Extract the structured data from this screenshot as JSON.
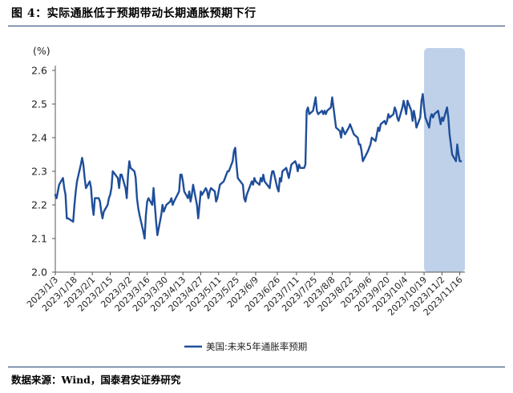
{
  "figure": {
    "title": "图 4：实际通胀低于预期带动长期通胀预期下行",
    "source": "数据来源：Wind，国泰君安证券研究"
  },
  "chart_data": {
    "type": "line",
    "ylabel": "(%)",
    "ylim": [
      2.0,
      2.6
    ],
    "yticks": [
      "2.0",
      "2.1",
      "2.2",
      "2.3",
      "2.4",
      "2.5",
      "2.6"
    ],
    "xlim": [
      "2023-01-03",
      "2023-11-20"
    ],
    "xticks": [
      "2023/1/3",
      "2023/1/18",
      "2023/2/1",
      "2023/2/15",
      "2023/3/2",
      "2023/3/16",
      "2023/3/30",
      "2023/4/13",
      "2023/4/27",
      "2023/5/11",
      "2023/5/25",
      "2023/6/9",
      "2023/6/26",
      "2023/7/11",
      "2023/7/25",
      "2023/8/8",
      "2023/8/22",
      "2023/9/6",
      "2023/9/20",
      "2023/10/4",
      "2023/10/19",
      "2023/11/2",
      "2023/11/16"
    ],
    "highlight": {
      "from": "2023-10-19",
      "to": "2023-11-20",
      "color": "#bccfe8"
    },
    "series": [
      {
        "name": "美国:未来5年通胀率预期",
        "color": "#1f4e9a",
        "points": [
          [
            "2023-01-03",
            2.23
          ],
          [
            "2023-01-04",
            2.22
          ],
          [
            "2023-01-05",
            2.24
          ],
          [
            "2023-01-06",
            2.26
          ],
          [
            "2023-01-09",
            2.28
          ],
          [
            "2023-01-10",
            2.25
          ],
          [
            "2023-01-11",
            2.23
          ],
          [
            "2023-01-12",
            2.16
          ],
          [
            "2023-01-13",
            2.16
          ],
          [
            "2023-01-17",
            2.15
          ],
          [
            "2023-01-18",
            2.2
          ],
          [
            "2023-01-19",
            2.24
          ],
          [
            "2023-01-20",
            2.27
          ],
          [
            "2023-01-23",
            2.32
          ],
          [
            "2023-01-24",
            2.34
          ],
          [
            "2023-01-25",
            2.32
          ],
          [
            "2023-01-26",
            2.28
          ],
          [
            "2023-01-27",
            2.25
          ],
          [
            "2023-01-30",
            2.27
          ],
          [
            "2023-01-31",
            2.25
          ],
          [
            "2023-02-01",
            2.2
          ],
          [
            "2023-02-02",
            2.17
          ],
          [
            "2023-02-03",
            2.22
          ],
          [
            "2023-02-06",
            2.22
          ],
          [
            "2023-02-07",
            2.21
          ],
          [
            "2023-02-08",
            2.18
          ],
          [
            "2023-02-09",
            2.16
          ],
          [
            "2023-02-10",
            2.18
          ],
          [
            "2023-02-13",
            2.2
          ],
          [
            "2023-02-14",
            2.22
          ],
          [
            "2023-02-15",
            2.23
          ],
          [
            "2023-02-16",
            2.25
          ],
          [
            "2023-02-17",
            2.3
          ],
          [
            "2023-02-21",
            2.28
          ],
          [
            "2023-02-22",
            2.25
          ],
          [
            "2023-02-23",
            2.29
          ],
          [
            "2023-02-24",
            2.29
          ],
          [
            "2023-02-27",
            2.25
          ],
          [
            "2023-02-28",
            2.22
          ],
          [
            "2023-03-01",
            2.29
          ],
          [
            "2023-03-02",
            2.33
          ],
          [
            "2023-03-03",
            2.31
          ],
          [
            "2023-03-06",
            2.3
          ],
          [
            "2023-03-07",
            2.28
          ],
          [
            "2023-03-08",
            2.22
          ],
          [
            "2023-03-09",
            2.19
          ],
          [
            "2023-03-10",
            2.17
          ],
          [
            "2023-03-13",
            2.12
          ],
          [
            "2023-03-14",
            2.1
          ],
          [
            "2023-03-15",
            2.17
          ],
          [
            "2023-03-16",
            2.21
          ],
          [
            "2023-03-17",
            2.22
          ],
          [
            "2023-03-20",
            2.2
          ],
          [
            "2023-03-21",
            2.25
          ],
          [
            "2023-03-22",
            2.2
          ],
          [
            "2023-03-23",
            2.15
          ],
          [
            "2023-03-24",
            2.11
          ],
          [
            "2023-03-27",
            2.17
          ],
          [
            "2023-03-28",
            2.2
          ],
          [
            "2023-03-29",
            2.18
          ],
          [
            "2023-03-30",
            2.19
          ],
          [
            "2023-03-31",
            2.2
          ],
          [
            "2023-04-03",
            2.21
          ],
          [
            "2023-04-04",
            2.22
          ],
          [
            "2023-04-05",
            2.2
          ],
          [
            "2023-04-06",
            2.21
          ],
          [
            "2023-04-10",
            2.24
          ],
          [
            "2023-04-11",
            2.29
          ],
          [
            "2023-04-12",
            2.29
          ],
          [
            "2023-04-13",
            2.27
          ],
          [
            "2023-04-14",
            2.24
          ],
          [
            "2023-04-17",
            2.22
          ],
          [
            "2023-04-18",
            2.24
          ],
          [
            "2023-04-19",
            2.21
          ],
          [
            "2023-04-20",
            2.23
          ],
          [
            "2023-04-21",
            2.26
          ],
          [
            "2023-04-24",
            2.2
          ],
          [
            "2023-04-25",
            2.16
          ],
          [
            "2023-04-26",
            2.2
          ],
          [
            "2023-04-27",
            2.24
          ],
          [
            "2023-04-28",
            2.23
          ],
          [
            "2023-05-01",
            2.25
          ],
          [
            "2023-05-02",
            2.24
          ],
          [
            "2023-05-03",
            2.22
          ],
          [
            "2023-05-04",
            2.24
          ],
          [
            "2023-05-05",
            2.25
          ],
          [
            "2023-05-08",
            2.24
          ],
          [
            "2023-05-09",
            2.21
          ],
          [
            "2023-05-10",
            2.22
          ],
          [
            "2023-05-11",
            2.24
          ],
          [
            "2023-05-12",
            2.26
          ],
          [
            "2023-05-15",
            2.27
          ],
          [
            "2023-05-16",
            2.28
          ],
          [
            "2023-05-17",
            2.29
          ],
          [
            "2023-05-18",
            2.3
          ],
          [
            "2023-05-19",
            2.3
          ],
          [
            "2023-05-22",
            2.33
          ],
          [
            "2023-05-23",
            2.36
          ],
          [
            "2023-05-24",
            2.37
          ],
          [
            "2023-05-25",
            2.32
          ],
          [
            "2023-05-26",
            2.28
          ],
          [
            "2023-05-30",
            2.26
          ],
          [
            "2023-05-31",
            2.22
          ],
          [
            "2023-06-01",
            2.21
          ],
          [
            "2023-06-02",
            2.23
          ],
          [
            "2023-06-05",
            2.26
          ],
          [
            "2023-06-06",
            2.27
          ],
          [
            "2023-06-07",
            2.26
          ],
          [
            "2023-06-08",
            2.28
          ],
          [
            "2023-06-09",
            2.27
          ],
          [
            "2023-06-12",
            2.26
          ],
          [
            "2023-06-13",
            2.28
          ],
          [
            "2023-06-14",
            2.27
          ],
          [
            "2023-06-15",
            2.29
          ],
          [
            "2023-06-16",
            2.27
          ],
          [
            "2023-06-20",
            2.25
          ],
          [
            "2023-06-21",
            2.28
          ],
          [
            "2023-06-22",
            2.3
          ],
          [
            "2023-06-23",
            2.3
          ],
          [
            "2023-06-26",
            2.25
          ],
          [
            "2023-06-27",
            2.24
          ],
          [
            "2023-06-28",
            2.28
          ],
          [
            "2023-06-29",
            2.27
          ],
          [
            "2023-06-30",
            2.3
          ],
          [
            "2023-07-03",
            2.31
          ],
          [
            "2023-07-05",
            2.28
          ],
          [
            "2023-07-06",
            2.3
          ],
          [
            "2023-07-07",
            2.32
          ],
          [
            "2023-07-10",
            2.33
          ],
          [
            "2023-07-11",
            2.32
          ],
          [
            "2023-07-12",
            2.3
          ],
          [
            "2023-07-13",
            2.32
          ],
          [
            "2023-07-14",
            2.31
          ],
          [
            "2023-07-17",
            2.31
          ],
          [
            "2023-07-18",
            2.32
          ],
          [
            "2023-07-19",
            2.48
          ],
          [
            "2023-07-20",
            2.49
          ],
          [
            "2023-07-21",
            2.47
          ],
          [
            "2023-07-24",
            2.48
          ],
          [
            "2023-07-25",
            2.5
          ],
          [
            "2023-07-26",
            2.52
          ],
          [
            "2023-07-27",
            2.48
          ],
          [
            "2023-07-28",
            2.47
          ],
          [
            "2023-07-31",
            2.48
          ],
          [
            "2023-08-01",
            2.47
          ],
          [
            "2023-08-02",
            2.48
          ],
          [
            "2023-08-03",
            2.47
          ],
          [
            "2023-08-04",
            2.48
          ],
          [
            "2023-08-07",
            2.49
          ],
          [
            "2023-08-08",
            2.52
          ],
          [
            "2023-08-09",
            2.49
          ],
          [
            "2023-08-10",
            2.46
          ],
          [
            "2023-08-11",
            2.43
          ],
          [
            "2023-08-14",
            2.42
          ],
          [
            "2023-08-15",
            2.4
          ],
          [
            "2023-08-16",
            2.43
          ],
          [
            "2023-08-17",
            2.42
          ],
          [
            "2023-08-18",
            2.41
          ],
          [
            "2023-08-21",
            2.43
          ],
          [
            "2023-08-22",
            2.44
          ],
          [
            "2023-08-23",
            2.43
          ],
          [
            "2023-08-24",
            2.42
          ],
          [
            "2023-08-25",
            2.41
          ],
          [
            "2023-08-28",
            2.4
          ],
          [
            "2023-08-29",
            2.38
          ],
          [
            "2023-08-30",
            2.38
          ],
          [
            "2023-08-31",
            2.36
          ],
          [
            "2023-09-01",
            2.33
          ],
          [
            "2023-09-05",
            2.36
          ],
          [
            "2023-09-06",
            2.37
          ],
          [
            "2023-09-07",
            2.38
          ],
          [
            "2023-09-08",
            2.4
          ],
          [
            "2023-09-11",
            2.39
          ],
          [
            "2023-09-12",
            2.41
          ],
          [
            "2023-09-13",
            2.43
          ],
          [
            "2023-09-14",
            2.42
          ],
          [
            "2023-09-15",
            2.44
          ],
          [
            "2023-09-18",
            2.45
          ],
          [
            "2023-09-19",
            2.44
          ],
          [
            "2023-09-20",
            2.45
          ],
          [
            "2023-09-21",
            2.47
          ],
          [
            "2023-09-22",
            2.46
          ],
          [
            "2023-09-25",
            2.47
          ],
          [
            "2023-09-26",
            2.49
          ],
          [
            "2023-09-27",
            2.48
          ],
          [
            "2023-09-28",
            2.46
          ],
          [
            "2023-09-29",
            2.45
          ],
          [
            "2023-10-02",
            2.49
          ],
          [
            "2023-10-03",
            2.51
          ],
          [
            "2023-10-04",
            2.49
          ],
          [
            "2023-10-05",
            2.47
          ],
          [
            "2023-10-06",
            2.51
          ],
          [
            "2023-10-09",
            2.48
          ],
          [
            "2023-10-10",
            2.45
          ],
          [
            "2023-10-11",
            2.48
          ],
          [
            "2023-10-12",
            2.46
          ],
          [
            "2023-10-13",
            2.43
          ],
          [
            "2023-10-16",
            2.46
          ],
          [
            "2023-10-17",
            2.51
          ],
          [
            "2023-10-18",
            2.53
          ],
          [
            "2023-10-19",
            2.49
          ],
          [
            "2023-10-20",
            2.46
          ],
          [
            "2023-10-23",
            2.43
          ],
          [
            "2023-10-24",
            2.46
          ],
          [
            "2023-10-25",
            2.47
          ],
          [
            "2023-10-26",
            2.46
          ],
          [
            "2023-10-27",
            2.47
          ],
          [
            "2023-10-30",
            2.48
          ],
          [
            "2023-10-31",
            2.46
          ],
          [
            "2023-11-01",
            2.44
          ],
          [
            "2023-11-02",
            2.46
          ],
          [
            "2023-11-03",
            2.45
          ],
          [
            "2023-11-06",
            2.49
          ],
          [
            "2023-11-07",
            2.46
          ],
          [
            "2023-11-08",
            2.41
          ],
          [
            "2023-11-09",
            2.38
          ],
          [
            "2023-11-10",
            2.35
          ],
          [
            "2023-11-13",
            2.33
          ],
          [
            "2023-11-14",
            2.38
          ],
          [
            "2023-11-15",
            2.35
          ],
          [
            "2023-11-16",
            2.33
          ],
          [
            "2023-11-17",
            2.33
          ]
        ]
      }
    ],
    "legend": "bottom-center",
    "grid": false
  }
}
